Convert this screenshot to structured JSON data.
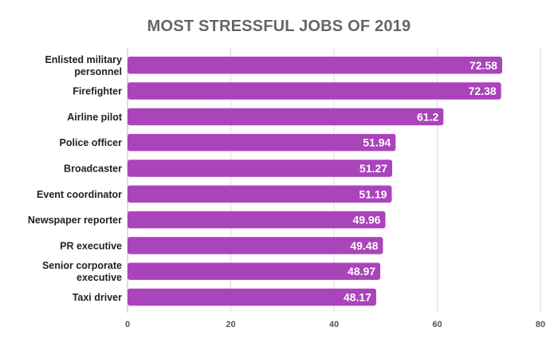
{
  "chart_data": {
    "type": "bar",
    "orientation": "horizontal",
    "title": "MOST STRESSFUL JOBS OF 2019",
    "categories": [
      [
        "Enlisted military",
        "personnel"
      ],
      [
        "Firefighter"
      ],
      [
        "Airline pilot"
      ],
      [
        "Police officer"
      ],
      [
        "Broadcaster"
      ],
      [
        "Event coordinator"
      ],
      [
        "Newspaper reporter"
      ],
      [
        "PR executive"
      ],
      [
        "Senior corporate",
        "executive"
      ],
      [
        "Taxi driver"
      ]
    ],
    "values": [
      72.58,
      72.38,
      61.2,
      51.94,
      51.27,
      51.19,
      49.96,
      49.48,
      48.97,
      48.17
    ],
    "value_labels": [
      "72.58",
      "72.38",
      "61.2",
      "51.94",
      "51.27",
      "51.19",
      "49.96",
      "49.48",
      "48.97",
      "48.17"
    ],
    "xlim": [
      0,
      80
    ],
    "xticks": [
      0,
      20,
      40,
      60,
      80
    ],
    "grid": true,
    "legend": "none",
    "colors": {
      "bar": "#AA44BB",
      "title": "#666666",
      "category_label": "#222222",
      "tick_label": "#555555",
      "gridline": "#dddddd",
      "value_label": "#ffffff"
    }
  }
}
